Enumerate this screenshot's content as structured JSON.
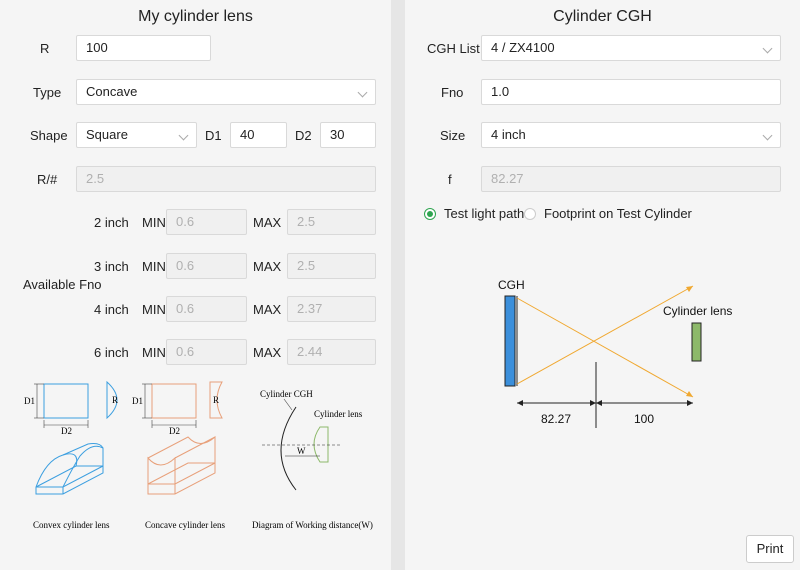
{
  "left": {
    "title": "My cylinder lens",
    "r": {
      "label": "R",
      "value": "100"
    },
    "type": {
      "label": "Type",
      "value": "Concave"
    },
    "shape": {
      "label": "Shape",
      "value": "Square",
      "d1_label": "D1",
      "d1_value": "40",
      "d2_label": "D2",
      "d2_value": "30"
    },
    "r_num": {
      "label": "R/#",
      "value": "2.5"
    },
    "available_fno": {
      "label": "Available Fno",
      "min_label": "MIN",
      "max_label": "MAX",
      "rows": [
        {
          "size": "2 inch",
          "min": "0.6",
          "max": "2.5"
        },
        {
          "size": "3 inch",
          "min": "0.6",
          "max": "2.5"
        },
        {
          "size": "4 inch",
          "min": "0.6",
          "max": "2.37"
        },
        {
          "size": "6 inch",
          "min": "0.6",
          "max": "2.44"
        }
      ]
    },
    "diagrams": {
      "d1": "D1",
      "d2": "D2",
      "r": "R",
      "convex_caption": "Convex  cylinder lens",
      "concave_caption": "Concave cylinder lens",
      "wd_caption": "Diagram of Working distance(W)",
      "wd_cgh_label": "Cylinder CGH",
      "wd_lens_label": "Cylinder lens",
      "wd_w_label": "W"
    }
  },
  "right": {
    "title": "Cylinder CGH",
    "cgh_list": {
      "label": "CGH List",
      "value": "4 / ZX4100"
    },
    "fno": {
      "label": "Fno",
      "value": "1.0"
    },
    "size": {
      "label": "Size",
      "value": "4 inch"
    },
    "f": {
      "label": "f",
      "value": "82.27"
    },
    "radio_test_path": "Test light path",
    "radio_footprint": "Footprint on Test Cylinder",
    "selected_radio": "Test light path",
    "diagram": {
      "cgh_label": "CGH",
      "lens_label": "Cylinder lens",
      "dist1": "82.27",
      "dist2": "100"
    },
    "print_label": "Print"
  },
  "colors": {
    "accent_green": "#2ea44f",
    "cgh_blue": "#3b8fdb",
    "ray_orange": "#f0a830",
    "lens_green": "#8db96a",
    "convex_blue": "#3c9fe0",
    "concave_orange": "#e8a07a"
  }
}
